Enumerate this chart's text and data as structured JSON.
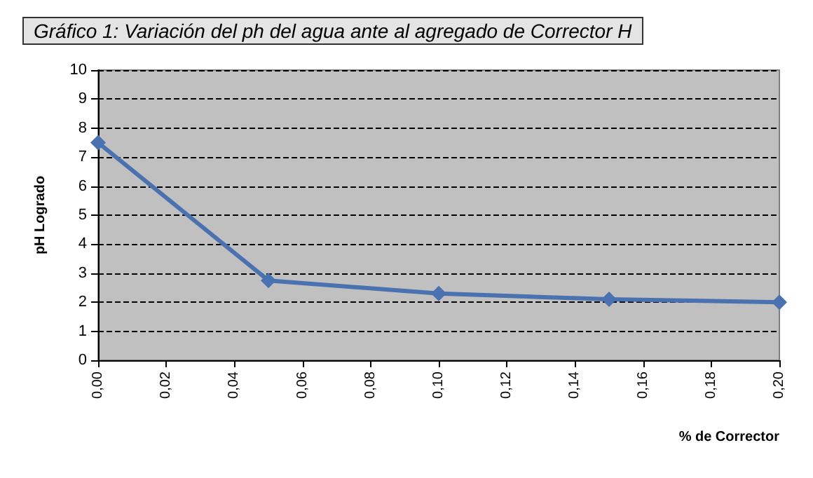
{
  "chart_data": {
    "type": "line",
    "title": "Gráfico 1: Variación del ph del agua ante al agregado de Corrector H",
    "xlabel": "% de Corrector",
    "ylabel": "pH Logrado",
    "x": [
      0,
      0.05,
      0.1,
      0.15,
      0.2
    ],
    "series": [
      {
        "color": "#4a72b0",
        "values": [
          7.5,
          2.75,
          2.3,
          2.1,
          2.0
        ]
      }
    ],
    "xlim": [
      0,
      0.2
    ],
    "xticks": [
      {
        "value": 0,
        "label": "0,00"
      },
      {
        "value": 0.02,
        "label": "0,02"
      },
      {
        "value": 0.04,
        "label": "0,04"
      },
      {
        "value": 0.06,
        "label": "0,06"
      },
      {
        "value": 0.08,
        "label": "0,08"
      },
      {
        "value": 0.1,
        "label": "0,10"
      },
      {
        "value": 0.12,
        "label": "0,12"
      },
      {
        "value": 0.14,
        "label": "0,14"
      },
      {
        "value": 0.16,
        "label": "0,16"
      },
      {
        "value": 0.18,
        "label": "0,18"
      },
      {
        "value": 0.2,
        "label": "0,20"
      }
    ],
    "ylim": [
      0,
      10
    ],
    "yticks": [
      0,
      1,
      2,
      3,
      4,
      5,
      6,
      7,
      8,
      9,
      10
    ],
    "grid": "y",
    "marker": "diamond",
    "line_style": "solid"
  }
}
